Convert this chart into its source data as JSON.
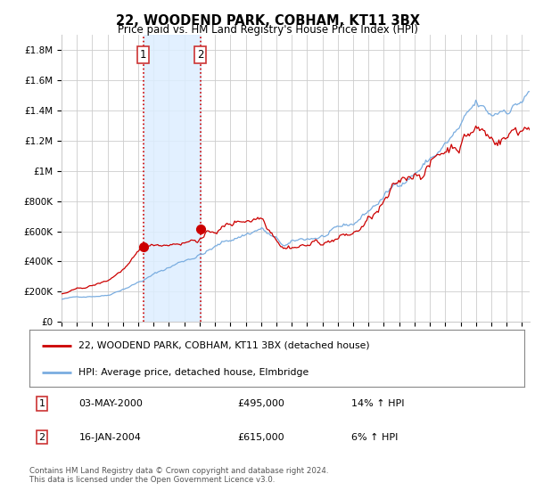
{
  "title": "22, WOODEND PARK, COBHAM, KT11 3BX",
  "subtitle": "Price paid vs. HM Land Registry's House Price Index (HPI)",
  "ylabel_ticks": [
    "£0",
    "£200K",
    "£400K",
    "£600K",
    "£800K",
    "£1M",
    "£1.2M",
    "£1.4M",
    "£1.6M",
    "£1.8M"
  ],
  "ytick_values": [
    0,
    200000,
    400000,
    600000,
    800000,
    1000000,
    1200000,
    1400000,
    1600000,
    1800000
  ],
  "ylim": [
    0,
    1900000
  ],
  "xlim_start": 1995.0,
  "xlim_end": 2025.5,
  "sale1_date": 2000.33,
  "sale1_price": 495000,
  "sale1_label": "1",
  "sale2_date": 2004.04,
  "sale2_price": 615000,
  "sale2_label": "2",
  "legend_line1": "22, WOODEND PARK, COBHAM, KT11 3BX (detached house)",
  "legend_line2": "HPI: Average price, detached house, Elmbridge",
  "table_row1_num": "1",
  "table_row1_date": "03-MAY-2000",
  "table_row1_price": "£495,000",
  "table_row1_hpi": "14% ↑ HPI",
  "table_row2_num": "2",
  "table_row2_date": "16-JAN-2004",
  "table_row2_price": "£615,000",
  "table_row2_hpi": "6% ↑ HPI",
  "footnote": "Contains HM Land Registry data © Crown copyright and database right 2024.\nThis data is licensed under the Open Government Licence v3.0.",
  "line_color_price": "#cc0000",
  "line_color_hpi": "#7aade0",
  "shade_color": "#ddeeff",
  "marker_color_price": "#cc0000",
  "grid_color": "#cccccc",
  "background_color": "#ffffff"
}
